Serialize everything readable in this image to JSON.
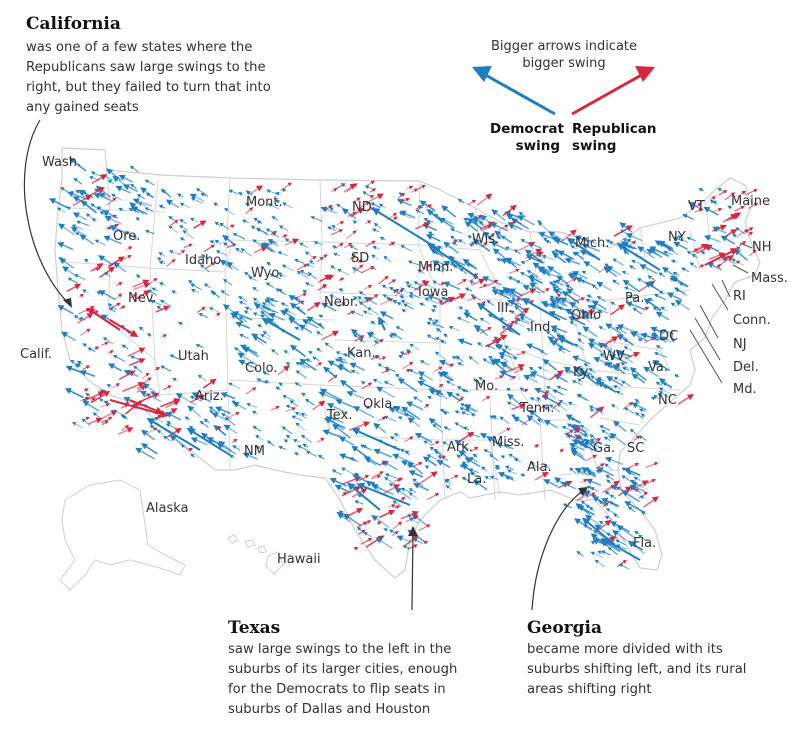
{
  "colors": {
    "democrat": "#1d7ec2",
    "republican": "#d7263d",
    "state_fill": "#ffffff",
    "state_stroke": "#d0d0d0",
    "county_stroke": "#ececec",
    "text": "#333333"
  },
  "legend": {
    "caption_line1": "Bigger arrows indicate",
    "caption_line2": "bigger swing",
    "democrat_line1": "Democrat",
    "democrat_line2": "swing",
    "republican_line1": "Republican",
    "republican_line2": "swing"
  },
  "annotations": {
    "california": {
      "title": "California",
      "lines": [
        "was one of a few states where the",
        "Republicans saw large swings to the",
        "right, but they failed to turn that into",
        "any gained seats"
      ]
    },
    "texas": {
      "title": "Texas",
      "lines": [
        "saw large swings to the left in the",
        "suburbs of its larger cities, enough",
        "for the Democrats to flip seats in",
        "suburbs of Dallas and Houston"
      ]
    },
    "georgia": {
      "title": "Georgia",
      "lines": [
        "became more divided with its",
        "suburbs shifting left, and its rural",
        "areas shifting right"
      ]
    }
  },
  "state_labels": [
    "Wash.",
    "Ore.",
    "Calif.",
    "Nev.",
    "Idaho",
    "Mont.",
    "Wyo.",
    "Utah",
    "Colo.",
    "Ariz.",
    "NM",
    "ND",
    "SD",
    "Nebr.",
    "Kan.",
    "Okla.",
    "Tex.",
    "Minn.",
    "Iowa",
    "Mo.",
    "Ark.",
    "La.",
    "Wis.",
    "Mich.",
    "Ill.",
    "Ind.",
    "Ohio",
    "Ky.",
    "Tenn.",
    "Miss.",
    "Ala.",
    "Ga.",
    "SC",
    "NC",
    "Va.",
    "WV",
    "Pa.",
    "NY",
    "VT",
    "Maine",
    "NH",
    "Mass.",
    "RI",
    "Conn.",
    "NJ",
    "Del.",
    "Md.",
    "DC",
    "Fla.",
    "Alaska",
    "Hawaii"
  ]
}
